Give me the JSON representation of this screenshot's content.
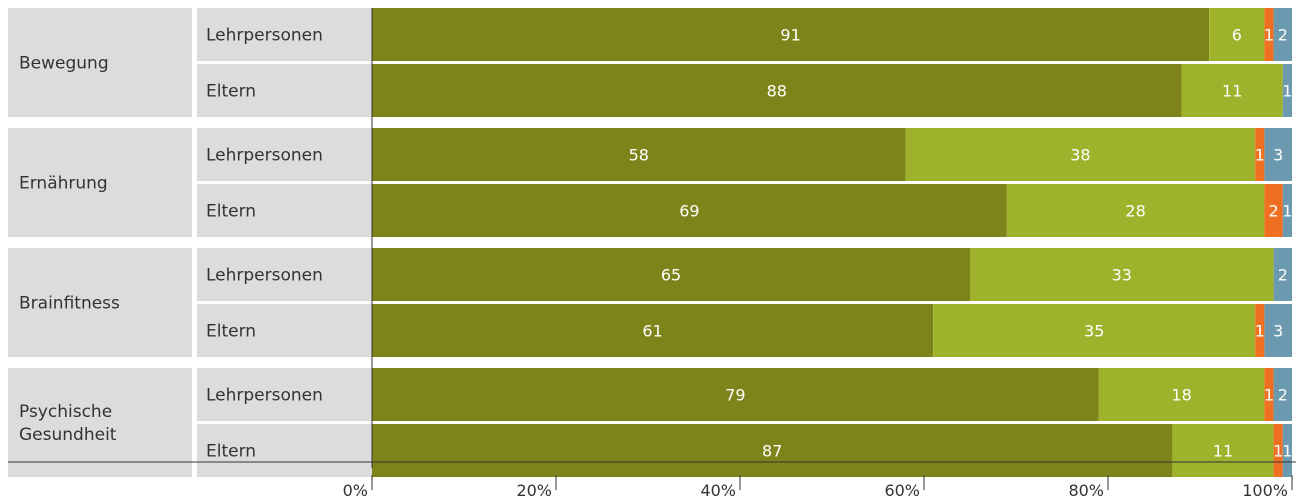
{
  "chart_data": {
    "type": "bar",
    "orientation": "horizontal",
    "stacked": true,
    "groups": [
      {
        "name": "Bewegung",
        "name_lines": [
          "Bewegung"
        ],
        "rows": [
          {
            "label": "Lehrpersonen",
            "values": [
              91,
              6,
              1,
              2
            ]
          },
          {
            "label": "Eltern",
            "values": [
              88,
              11,
              0,
              1
            ]
          }
        ]
      },
      {
        "name": "Ernährung",
        "name_lines": [
          "Ernährung"
        ],
        "rows": [
          {
            "label": "Lehrpersonen",
            "values": [
              58,
              38,
              1,
              3
            ]
          },
          {
            "label": "Eltern",
            "values": [
              69,
              28,
              2,
              1
            ]
          }
        ]
      },
      {
        "name": "Brainfitness",
        "name_lines": [
          "Brainfitness"
        ],
        "rows": [
          {
            "label": "Lehrpersonen",
            "values": [
              65,
              33,
              0,
              2
            ]
          },
          {
            "label": "Eltern",
            "values": [
              61,
              35,
              1,
              3
            ]
          }
        ]
      },
      {
        "name": "Psychische Gesundheit",
        "name_lines": [
          "Psychische",
          "Gesundheit"
        ],
        "rows": [
          {
            "label": "Lehrpersonen",
            "values": [
              79,
              18,
              1,
              2
            ]
          },
          {
            "label": "Eltern",
            "values": [
              87,
              11,
              1,
              1
            ]
          }
        ]
      }
    ],
    "series_colors": [
      "#7d8419",
      "#9eb22b",
      "#f07021",
      "#6b99b0"
    ],
    "xlim": [
      0,
      100
    ],
    "xticks": [
      "0%",
      "20%",
      "40%",
      "60%",
      "80%",
      "100%"
    ],
    "grid": false,
    "legend": "none"
  }
}
